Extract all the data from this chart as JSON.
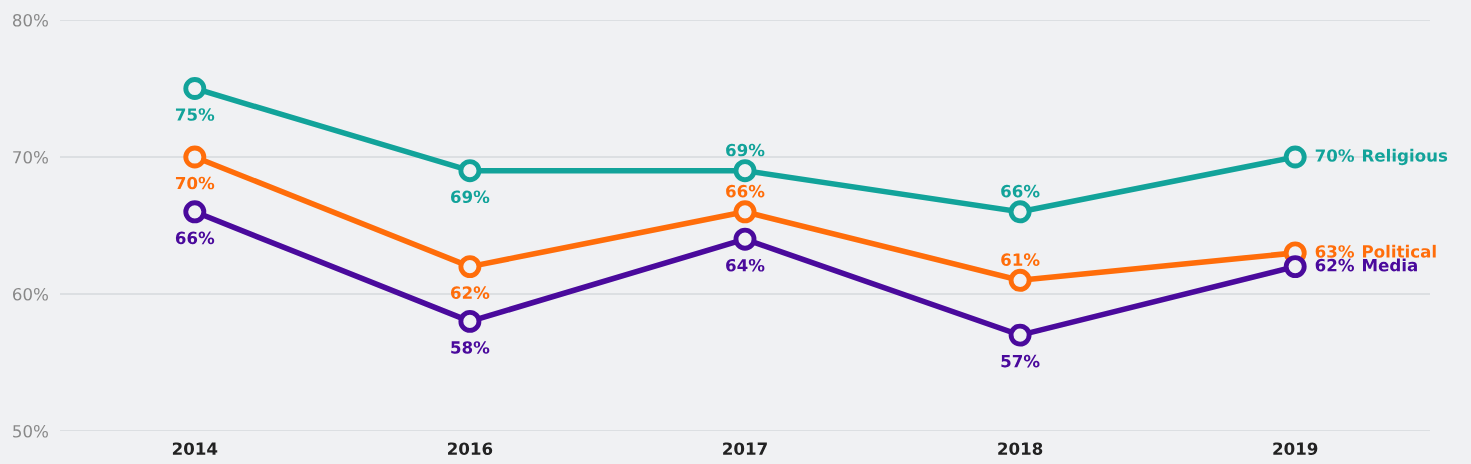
{
  "chart_data": {
    "type": "line",
    "categories": [
      "2014",
      "2016",
      "2017",
      "2018",
      "2019"
    ],
    "series": [
      {
        "name": "Religious",
        "color": "#12a39a",
        "values": [
          75,
          69,
          69,
          66,
          70
        ],
        "value_labels": [
          "75%",
          "69%",
          "69%",
          "66%",
          "70%"
        ]
      },
      {
        "name": "Political",
        "color": "#ff6d0a",
        "values": [
          70,
          62,
          66,
          61,
          63
        ],
        "value_labels": [
          "70%",
          "62%",
          "66%",
          "61%",
          "63%"
        ]
      },
      {
        "name": "Media",
        "color": "#4a0a9c",
        "values": [
          66,
          58,
          64,
          57,
          62
        ],
        "value_labels": [
          "66%",
          "58%",
          "64%",
          "57%",
          "62%"
        ]
      }
    ],
    "ylim": [
      50,
      80
    ],
    "yticks": [
      {
        "value": 50,
        "label": "50%"
      },
      {
        "value": 60,
        "label": "60%"
      },
      {
        "value": 70,
        "label": "70%"
      },
      {
        "value": 80,
        "label": "80%"
      }
    ],
    "grid": "y",
    "legend": false,
    "marker": "circle",
    "line_style": "solid"
  }
}
